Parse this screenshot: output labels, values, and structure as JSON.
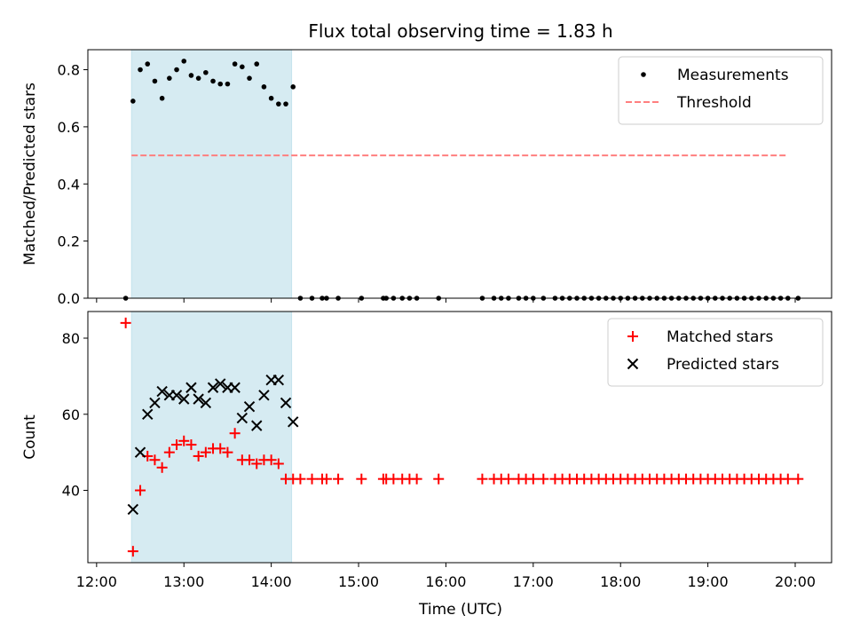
{
  "chart_data": {
    "type": "scatter",
    "title": "Flux total observing time = 1.83 h",
    "xlabel": "Time (UTC)",
    "x_tick_labels": [
      "12:00",
      "13:00",
      "14:00",
      "15:00",
      "16:00",
      "17:00",
      "18:00",
      "19:00",
      "20:00"
    ],
    "highlight_span": {
      "x": [
        "12:24",
        "14:14"
      ],
      "color": "#add8e6"
    },
    "panels": [
      {
        "ylabel": "Matched/Predicted stars",
        "ylim": [
          0,
          0.87
        ],
        "y_ticks": [
          "0.0",
          "0.2",
          "0.4",
          "0.6",
          "0.8"
        ],
        "legend": "top-right",
        "threshold": {
          "name": "Threshold",
          "value": 0.5,
          "x": [
            "12:24",
            "19:55"
          ],
          "color": "#ff7f7f"
        },
        "series": [
          {
            "name": "Measurements",
            "color": "#000000",
            "x": [
              "12:20",
              "12:25",
              "12:30",
              "12:35",
              "12:40",
              "12:45",
              "12:50",
              "12:55",
              "13:00",
              "13:05",
              "13:10",
              "13:15",
              "13:20",
              "13:25",
              "13:30",
              "13:35",
              "13:40",
              "13:45",
              "13:50",
              "13:55",
              "14:00",
              "14:05",
              "14:10",
              "14:15",
              "14:20",
              "14:28",
              "14:35",
              "14:38",
              "14:46",
              "15:02",
              "15:17",
              "15:19",
              "15:24",
              "15:30",
              "15:35",
              "15:40",
              "15:55",
              "16:25",
              "16:33",
              "16:38",
              "16:43",
              "16:50",
              "16:55",
              "17:00",
              "17:07",
              "17:15",
              "17:20",
              "17:25",
              "17:30",
              "17:35",
              "17:40",
              "17:45",
              "17:50",
              "17:55",
              "18:00",
              "18:05",
              "18:10",
              "18:15",
              "18:20",
              "18:25",
              "18:30",
              "18:35",
              "18:40",
              "18:45",
              "18:50",
              "18:55",
              "19:00",
              "19:05",
              "19:10",
              "19:15",
              "19:20",
              "19:25",
              "19:30",
              "19:35",
              "19:40",
              "19:45",
              "19:50",
              "19:55",
              "20:02"
            ],
            "y": [
              0.0,
              0.69,
              0.8,
              0.82,
              0.76,
              0.7,
              0.77,
              0.8,
              0.83,
              0.78,
              0.77,
              0.79,
              0.76,
              0.75,
              0.75,
              0.82,
              0.81,
              0.77,
              0.82,
              0.74,
              0.7,
              0.68,
              0.68,
              0.74,
              0.0,
              0.0,
              0.0,
              0.0,
              0.0,
              0.0,
              0.0,
              0.0,
              0.0,
              0.0,
              0.0,
              0.0,
              0.0,
              0.0,
              0.0,
              0.0,
              0.0,
              0.0,
              0.0,
              0.0,
              0.0,
              0.0,
              0.0,
              0.0,
              0.0,
              0.0,
              0.0,
              0.0,
              0.0,
              0.0,
              0.0,
              0.0,
              0.0,
              0.0,
              0.0,
              0.0,
              0.0,
              0.0,
              0.0,
              0.0,
              0.0,
              0.0,
              0.0,
              0.0,
              0.0,
              0.0,
              0.0,
              0.0,
              0.0,
              0.0,
              0.0,
              0.0,
              0.0,
              0.0,
              0.0
            ]
          }
        ]
      },
      {
        "ylabel": "Count",
        "ylim": [
          21,
          87
        ],
        "y_ticks": [
          "40",
          "60",
          "80"
        ],
        "legend": "top-right",
        "series": [
          {
            "name": "Matched stars",
            "color": "#ff0000",
            "marker": "plus",
            "x": [
              "12:20",
              "12:25",
              "12:30",
              "12:35",
              "12:40",
              "12:45",
              "12:50",
              "12:55",
              "13:00",
              "13:05",
              "13:10",
              "13:15",
              "13:20",
              "13:25",
              "13:30",
              "13:35",
              "13:40",
              "13:45",
              "13:50",
              "13:55",
              "14:00",
              "14:05",
              "14:10",
              "14:15",
              "14:20",
              "14:28",
              "14:35",
              "14:38",
              "14:46",
              "15:02",
              "15:17",
              "15:19",
              "15:24",
              "15:30",
              "15:35",
              "15:40",
              "15:55",
              "16:25",
              "16:33",
              "16:38",
              "16:43",
              "16:50",
              "16:55",
              "17:00",
              "17:07",
              "17:15",
              "17:20",
              "17:25",
              "17:30",
              "17:35",
              "17:40",
              "17:45",
              "17:50",
              "17:55",
              "18:00",
              "18:05",
              "18:10",
              "18:15",
              "18:20",
              "18:25",
              "18:30",
              "18:35",
              "18:40",
              "18:45",
              "18:50",
              "18:55",
              "19:00",
              "19:05",
              "19:10",
              "19:15",
              "19:20",
              "19:25",
              "19:30",
              "19:35",
              "19:40",
              "19:45",
              "19:50",
              "19:55",
              "20:02"
            ],
            "y": [
              84,
              24,
              40,
              49,
              48,
              46,
              50,
              52,
              53,
              52,
              49,
              50,
              51,
              51,
              50,
              55,
              48,
              48,
              47,
              48,
              48,
              47,
              43,
              43,
              43,
              43,
              43,
              43,
              43,
              43,
              43,
              43,
              43,
              43,
              43,
              43,
              43,
              43,
              43,
              43,
              43,
              43,
              43,
              43,
              43,
              43,
              43,
              43,
              43,
              43,
              43,
              43,
              43,
              43,
              43,
              43,
              43,
              43,
              43,
              43,
              43,
              43,
              43,
              43,
              43,
              43,
              43,
              43,
              43,
              43,
              43,
              43,
              43,
              43,
              43,
              43,
              43,
              43,
              43
            ]
          },
          {
            "name": "Predicted stars",
            "color": "#000000",
            "marker": "x",
            "x": [
              "12:25",
              "12:30",
              "12:35",
              "12:40",
              "12:45",
              "12:50",
              "12:55",
              "13:00",
              "13:05",
              "13:10",
              "13:15",
              "13:20",
              "13:25",
              "13:30",
              "13:35",
              "13:40",
              "13:45",
              "13:50",
              "13:55",
              "14:00",
              "14:05",
              "14:10",
              "14:15"
            ],
            "y": [
              35,
              50,
              60,
              63,
              66,
              65,
              65,
              64,
              67,
              64,
              63,
              67,
              68,
              67,
              67,
              59,
              62,
              57,
              65,
              69,
              69,
              63,
              58
            ]
          }
        ]
      }
    ]
  }
}
